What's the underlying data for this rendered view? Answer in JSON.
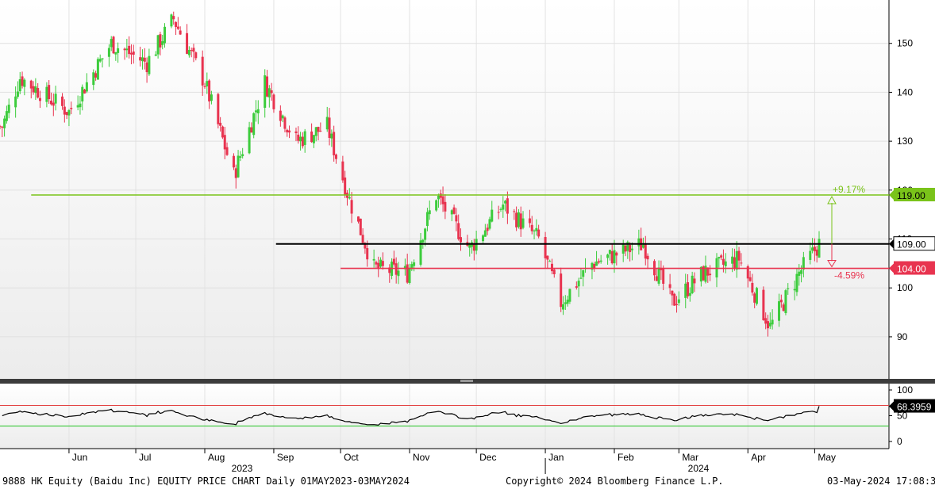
{
  "chart_data": [
    {
      "type": "candlestick",
      "title": "",
      "ylim": [
        80,
        160
      ],
      "yticks": [
        90,
        100,
        110,
        120,
        130,
        140,
        150
      ],
      "grid": true,
      "colors": {
        "up": "#3ccc3c",
        "down": "#e8334f",
        "upper_line": "#7ac31a",
        "mid_line": "#000000",
        "lower_line": "#e8334f"
      },
      "reference_lines": [
        {
          "label": "119.00",
          "value": 119,
          "pct_label": "+9.17%",
          "color": "#7ac31a"
        },
        {
          "label": "109.00",
          "value": 109,
          "color": "#000000"
        },
        {
          "label": "104.00",
          "value": 104,
          "pct_label": "-4.59%",
          "color": "#e8334f"
        }
      ],
      "key_points": [
        {
          "date": "2023-05-02",
          "close": 133
        },
        {
          "date": "2023-05-10",
          "close": 143
        },
        {
          "date": "2023-06-01",
          "close": 136
        },
        {
          "date": "2023-06-20",
          "close": 150
        },
        {
          "date": "2023-07-06",
          "close": 146
        },
        {
          "date": "2023-07-18",
          "close": 155
        },
        {
          "date": "2023-08-01",
          "close": 142
        },
        {
          "date": "2023-08-14",
          "close": 123
        },
        {
          "date": "2023-08-28",
          "close": 142
        },
        {
          "date": "2023-09-11",
          "close": 130
        },
        {
          "date": "2023-09-25",
          "close": 133
        },
        {
          "date": "2023-10-05",
          "close": 118
        },
        {
          "date": "2023-10-16",
          "close": 104
        },
        {
          "date": "2023-10-31",
          "close": 103
        },
        {
          "date": "2023-11-13",
          "close": 119
        },
        {
          "date": "2023-11-28",
          "close": 108
        },
        {
          "date": "2023-12-13",
          "close": 117
        },
        {
          "date": "2023-12-29",
          "close": 110
        },
        {
          "date": "2024-01-08",
          "close": 97
        },
        {
          "date": "2024-01-22",
          "close": 105
        },
        {
          "date": "2024-02-14",
          "close": 109
        },
        {
          "date": "2024-02-27",
          "close": 97
        },
        {
          "date": "2024-03-12",
          "close": 103
        },
        {
          "date": "2024-03-28",
          "close": 106
        },
        {
          "date": "2024-04-11",
          "close": 92
        },
        {
          "date": "2024-04-24",
          "close": 103
        },
        {
          "date": "2024-05-03",
          "close": 109
        }
      ]
    },
    {
      "type": "line",
      "title": "",
      "ylim": [
        -10,
        105
      ],
      "yticks": [
        0,
        50,
        100
      ],
      "series_label": "68.3959",
      "bands": [
        30,
        70
      ],
      "colors": {
        "line": "#000000",
        "upper_band": "#e24040",
        "lower_band": "#22c322"
      }
    }
  ],
  "x_axis": {
    "months": [
      "Jun",
      "Jul",
      "Aug",
      "Sep",
      "Oct",
      "Nov",
      "Dec",
      "Jan",
      "Feb",
      "Mar",
      "Apr",
      "May"
    ],
    "years": [
      "2023",
      "2024"
    ]
  },
  "footer": {
    "left": "9888 HK Equity (Baidu Inc) EQUITY PRICE CHART  Daily 01MAY2023-03MAY2024",
    "center": "Copyright© 2024 Bloomberg Finance L.P.",
    "right": "03-May-2024 17:08:32"
  }
}
